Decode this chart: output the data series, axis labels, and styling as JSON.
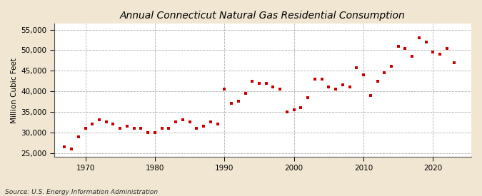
{
  "title": "Annual Connecticut Natural Gas Residential Consumption",
  "ylabel": "Million Cubic Feet",
  "source": "Source: U.S. Energy Information Administration",
  "background_color": "#f0e6d2",
  "plot_background_color": "#ffffff",
  "marker_color": "#cc0000",
  "years": [
    1967,
    1968,
    1969,
    1970,
    1971,
    1972,
    1973,
    1974,
    1975,
    1976,
    1977,
    1978,
    1979,
    1980,
    1981,
    1982,
    1983,
    1984,
    1985,
    1986,
    1987,
    1988,
    1989,
    1990,
    1991,
    1992,
    1993,
    1994,
    1995,
    1996,
    1997,
    1998,
    1999,
    2000,
    2001,
    2002,
    2003,
    2004,
    2005,
    2006,
    2007,
    2008,
    2009,
    2010,
    2011,
    2012,
    2013,
    2014,
    2015,
    2016,
    2017,
    2018,
    2019,
    2020,
    2021,
    2022,
    2023
  ],
  "values": [
    26500,
    26000,
    29000,
    31000,
    32000,
    33000,
    32500,
    32000,
    31000,
    31500,
    31000,
    31000,
    30000,
    30000,
    31000,
    31000,
    32500,
    33000,
    32500,
    31000,
    31500,
    32500,
    32000,
    40500,
    37000,
    37500,
    39500,
    42500,
    42000,
    42000,
    41000,
    40500,
    35000,
    35500,
    36000,
    38500,
    43000,
    43000,
    41000,
    40500,
    41500,
    41000,
    45800,
    44000,
    39000,
    42500,
    44500,
    46000,
    51000,
    50500,
    48500,
    53000,
    52000,
    49500,
    49000,
    50500,
    47000
  ],
  "xlim": [
    1965.5,
    2025.5
  ],
  "ylim": [
    24000,
    56500
  ],
  "yticks": [
    25000,
    30000,
    35000,
    40000,
    45000,
    50000,
    55000
  ],
  "xticks": [
    1970,
    1980,
    1990,
    2000,
    2010,
    2020
  ],
  "title_fontsize": 10,
  "ylabel_fontsize": 7.5,
  "tick_fontsize": 7.5,
  "source_fontsize": 6.5,
  "marker_size": 9
}
